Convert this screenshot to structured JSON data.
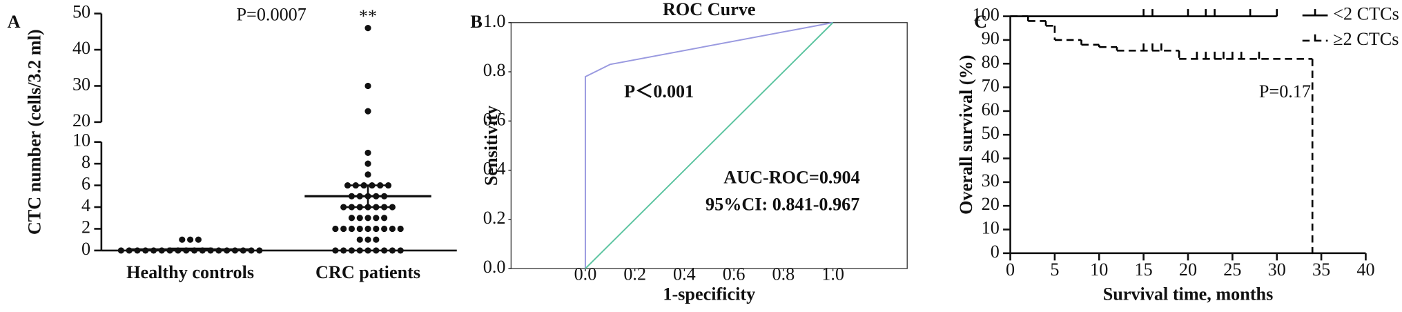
{
  "chart_data": [
    {
      "type": "strip",
      "panel_label": "A",
      "ylabel": "CTC number (cells/3.2 ml)",
      "annotation": "P=0.0007",
      "significance": "**",
      "categories": [
        "Healthy controls",
        "CRC patients"
      ],
      "values": [
        [
          0,
          0,
          0,
          0,
          0,
          0,
          0,
          0,
          0,
          0,
          0,
          0,
          0,
          0,
          0,
          0,
          0,
          0,
          1,
          1,
          1
        ],
        [
          46,
          30,
          23,
          9,
          8,
          7,
          6,
          6,
          6,
          6,
          6,
          6,
          5,
          5,
          5,
          5,
          5,
          4,
          4,
          4,
          4,
          4,
          4,
          4,
          3,
          3,
          3,
          3,
          3,
          2,
          2,
          2,
          2,
          2,
          2,
          2,
          2,
          2,
          1,
          1,
          1,
          0,
          0,
          0,
          0,
          0,
          0,
          0,
          0,
          0
        ]
      ],
      "means": [
        0.1,
        5.0
      ],
      "errors": [
        0.08,
        1.0
      ],
      "color": "#111111",
      "ylim": [
        0,
        10
      ],
      "yticks": [
        0,
        2,
        4,
        6,
        8,
        10
      ],
      "ylim_upper": [
        20,
        50
      ],
      "yticks_upper": [
        20,
        30,
        40,
        50
      ]
    },
    {
      "type": "line",
      "panel_label": "B",
      "title": "ROC Curve",
      "xlabel": "1-specificity",
      "ylabel": "Sensitivity",
      "xlim": [
        -0.3,
        1.3
      ],
      "ylim": [
        0,
        1
      ],
      "xticks": [
        {
          "value": 0,
          "label": "0.0"
        },
        {
          "value": 0.2,
          "label": "0.2"
        },
        {
          "value": 0.4,
          "label": "0.4"
        },
        {
          "value": 0.6,
          "label": "0.6"
        },
        {
          "value": 0.8,
          "label": "0.8"
        },
        {
          "value": 1,
          "label": "1.0"
        }
      ],
      "yticks": [
        {
          "value": 0,
          "label": "0.0"
        },
        {
          "value": 0.2,
          "label": "0.2"
        },
        {
          "value": 0.4,
          "label": "0.4"
        },
        {
          "value": 0.6,
          "label": "0.6"
        },
        {
          "value": 0.8,
          "label": "0.8"
        },
        {
          "value": 1,
          "label": "1.0"
        }
      ],
      "series": [
        {
          "color": "#9a9ae0",
          "x": [
            0,
            0,
            0.1,
            1
          ],
          "values": [
            0,
            0.78,
            0.83,
            1
          ]
        },
        {
          "color": "#5cc4a0",
          "x": [
            0,
            1
          ],
          "values": [
            0,
            1
          ]
        }
      ],
      "annotations": [
        "P＜0.001",
        "AUC-ROC=0.904",
        "95%CI: 0.841-0.967"
      ]
    },
    {
      "type": "step",
      "panel_label": "C",
      "xlabel": "Survival time, months",
      "ylabel": "Overall survival (%)",
      "xlim": [
        0,
        40
      ],
      "xticks": [
        0,
        5,
        10,
        15,
        20,
        25,
        30,
        35,
        40
      ],
      "ylim": [
        0,
        100
      ],
      "yticks": [
        0,
        10,
        20,
        30,
        40,
        50,
        60,
        70,
        80,
        90,
        100
      ],
      "legend": "upper right",
      "annotation": "P=0.17",
      "series": [
        {
          "name": "<2 CTCs",
          "color": "#000000",
          "dashed": false,
          "x": [
            0,
            30
          ],
          "values": [
            100,
            100
          ],
          "censored": [
            15,
            16,
            20,
            22,
            23,
            27,
            30
          ]
        },
        {
          "name": "≥2 CTCs",
          "color": "#000000",
          "dashed": true,
          "x": [
            0,
            2,
            4,
            5,
            8,
            10,
            12,
            19,
            34
          ],
          "values": [
            100,
            98,
            96,
            90,
            88,
            87,
            85.5,
            82,
            0
          ],
          "censored": [
            15,
            16,
            17,
            21,
            22,
            23,
            24,
            25,
            26,
            28
          ]
        }
      ]
    }
  ]
}
